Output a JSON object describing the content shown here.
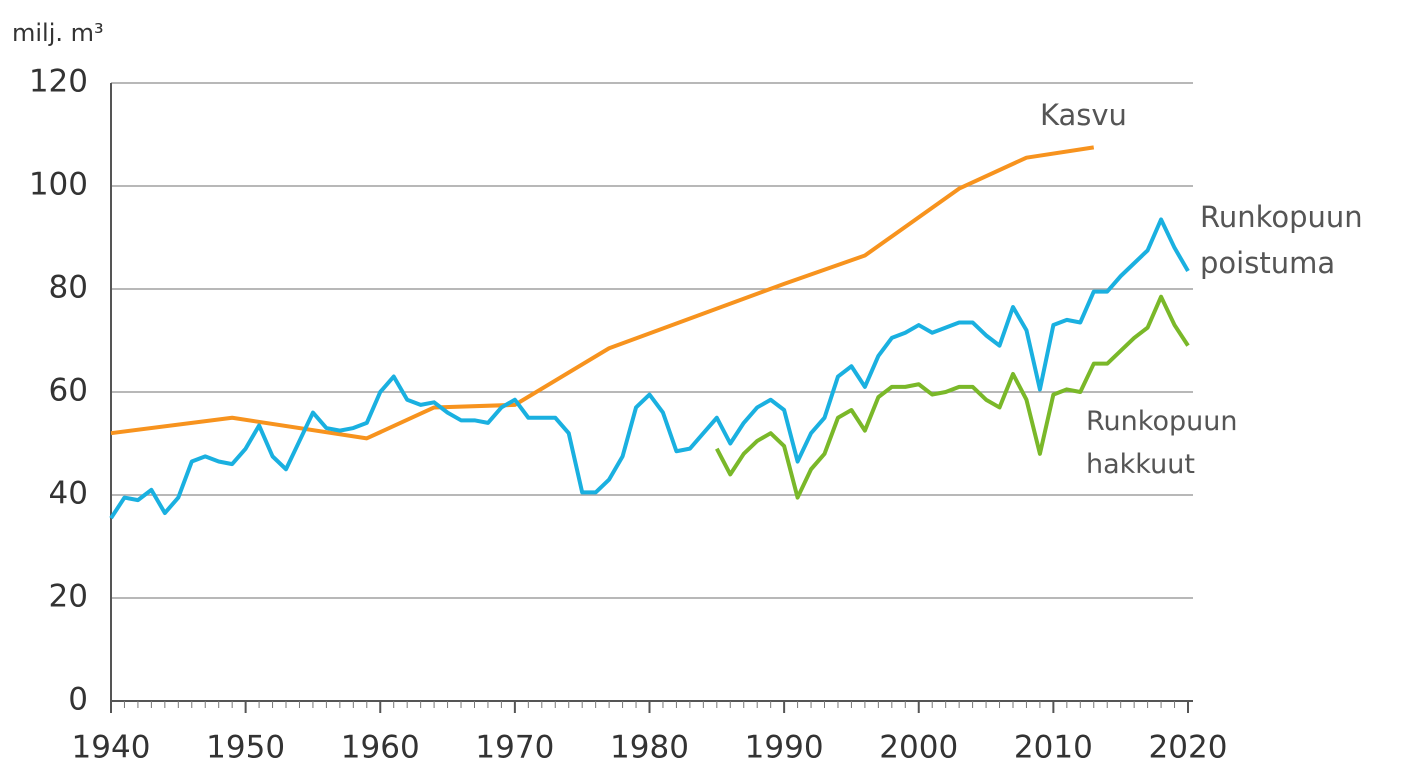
{
  "chart_data": {
    "type": "line",
    "y_label": "milj. m³",
    "xlim": [
      1940,
      2020
    ],
    "xticks": [
      1940,
      1950,
      1960,
      1970,
      1980,
      1990,
      2000,
      2010,
      2020
    ],
    "ylim": [
      0,
      120
    ],
    "yticks": [
      0,
      20,
      40,
      60,
      80,
      100,
      120
    ],
    "grid": true,
    "series": [
      {
        "name": "Kasvu",
        "color": "#f7931e",
        "x": [
          1940,
          1949,
          1959,
          1964,
          1970,
          1977,
          1990,
          1996,
          2003,
          2008,
          2013
        ],
        "values": [
          52,
          55,
          51,
          57,
          57.5,
          68.5,
          81,
          86.5,
          99.5,
          105.5,
          107.5
        ]
      },
      {
        "name": "Runkopuun poistuma",
        "color": "#1ab0e0",
        "x": [
          1940,
          1941,
          1942,
          1943,
          1944,
          1945,
          1946,
          1947,
          1948,
          1949,
          1950,
          1951,
          1952,
          1953,
          1954,
          1955,
          1956,
          1957,
          1958,
          1959,
          1960,
          1961,
          1962,
          1963,
          1964,
          1965,
          1966,
          1967,
          1968,
          1969,
          1970,
          1971,
          1972,
          1973,
          1974,
          1975,
          1976,
          1977,
          1978,
          1979,
          1980,
          1981,
          1982,
          1983,
          1984,
          1985,
          1986,
          1987,
          1988,
          1989,
          1990,
          1991,
          1992,
          1993,
          1994,
          1995,
          1996,
          1997,
          1998,
          1999,
          2000,
          2001,
          2002,
          2003,
          2004,
          2005,
          2006,
          2007,
          2008,
          2009,
          2010,
          2011,
          2012,
          2013,
          2014,
          2015,
          2016,
          2017,
          2018,
          2019,
          2020
        ],
        "values": [
          35.5,
          39.5,
          39,
          41,
          36.5,
          39.5,
          46.5,
          47.5,
          46.5,
          46,
          49,
          53.5,
          47.5,
          45,
          50.5,
          56,
          53,
          52.5,
          53,
          54,
          60,
          63,
          58.5,
          57.5,
          58,
          56,
          54.5,
          54.5,
          54,
          57,
          58.5,
          55,
          55,
          55,
          52,
          40.5,
          40.5,
          43,
          47.5,
          57,
          59.5,
          56,
          48.5,
          49,
          52,
          55,
          50,
          54,
          57,
          58.5,
          56.5,
          46.5,
          52,
          55,
          63,
          65,
          61,
          67,
          70.5,
          71.5,
          73,
          71.5,
          72.5,
          73.5,
          73.5,
          71,
          69,
          76.5,
          72,
          60.5,
          73,
          74,
          73.5,
          79.5,
          79.5,
          82.5,
          85,
          87.5,
          93.5,
          88,
          83.5
        ]
      },
      {
        "name": "Runkopuun hakkuut",
        "color": "#7ab829",
        "x": [
          1985,
          1986,
          1987,
          1988,
          1989,
          1990,
          1991,
          1992,
          1993,
          1994,
          1995,
          1996,
          1997,
          1998,
          1999,
          2000,
          2001,
          2002,
          2003,
          2004,
          2005,
          2006,
          2007,
          2008,
          2009,
          2010,
          2011,
          2012,
          2013,
          2014,
          2015,
          2016,
          2017,
          2018,
          2019,
          2020
        ],
        "values": [
          49,
          44,
          48,
          50.5,
          52,
          49.5,
          39.5,
          45,
          48,
          55,
          56.5,
          52.5,
          59,
          61,
          61,
          61.5,
          59.5,
          60,
          61,
          61,
          58.5,
          57,
          63.5,
          58.5,
          48,
          59.5,
          60.5,
          60,
          65.5,
          65.5,
          68,
          70.5,
          72.5,
          78.5,
          73,
          69
        ]
      }
    ]
  }
}
